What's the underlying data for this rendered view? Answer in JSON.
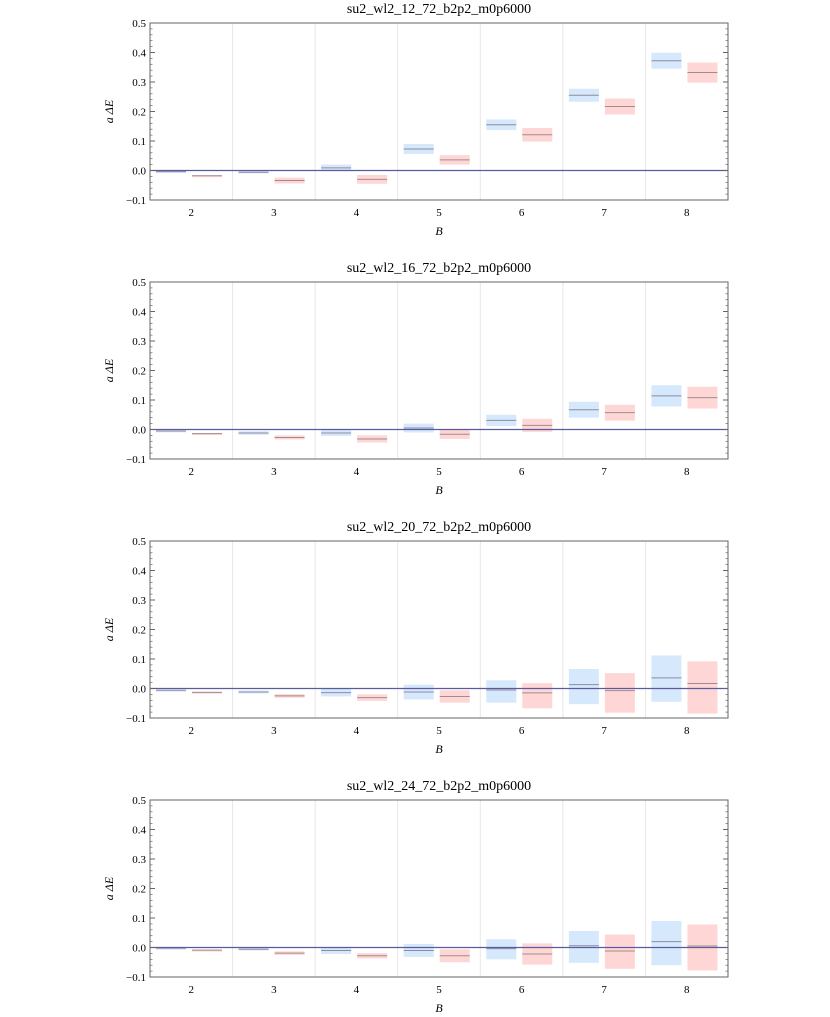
{
  "chart_data": [
    {
      "type": "interval",
      "title": "su2_wl2_12_72_b2p2_m0p6000",
      "xlabel": "B",
      "ylabel": "a ΔE",
      "ylim": [
        -0.1,
        0.5
      ],
      "yticks": [
        "0.5",
        "0.4",
        "0.3",
        "0.2",
        "0.1",
        "0.0",
        "−0.1"
      ],
      "categories": [
        "2",
        "3",
        "4",
        "5",
        "6",
        "7",
        "8"
      ],
      "series": [
        {
          "name": "blue",
          "color": "#d6e8fb",
          "line_color": "#8c8ca0",
          "center": [
            -0.004,
            -0.006,
            0.009,
            0.073,
            0.155,
            0.255,
            0.372
          ],
          "low": [
            -0.006,
            -0.01,
            -0.002,
            0.056,
            0.137,
            0.233,
            0.345
          ],
          "high": [
            -0.002,
            -0.002,
            0.02,
            0.09,
            0.173,
            0.277,
            0.399
          ]
        },
        {
          "name": "red",
          "color": "#ffd6d6",
          "line_color": "#a08c8c",
          "center": [
            -0.018,
            -0.034,
            -0.03,
            0.036,
            0.121,
            0.217,
            0.332
          ],
          "low": [
            -0.02,
            -0.044,
            -0.045,
            0.02,
            0.098,
            0.19,
            0.298
          ],
          "high": [
            -0.016,
            -0.024,
            -0.015,
            0.052,
            0.144,
            0.244,
            0.366
          ]
        }
      ]
    },
    {
      "type": "interval",
      "title": "su2_wl2_16_72_b2p2_m0p6000",
      "xlabel": "B",
      "ylabel": "a ΔE",
      "ylim": [
        -0.1,
        0.5
      ],
      "yticks": [
        "0.5",
        "0.4",
        "0.3",
        "0.2",
        "0.1",
        "0.0",
        "−0.1"
      ],
      "categories": [
        "2",
        "3",
        "4",
        "5",
        "6",
        "7",
        "8"
      ],
      "series": [
        {
          "name": "blue",
          "color": "#d6e8fb",
          "line_color": "#8c8ca0",
          "center": [
            -0.005,
            -0.012,
            -0.012,
            0.005,
            0.031,
            0.067,
            0.114
          ],
          "low": [
            -0.007,
            -0.018,
            -0.022,
            -0.01,
            0.012,
            0.04,
            0.078
          ],
          "high": [
            -0.003,
            -0.006,
            -0.002,
            0.02,
            0.05,
            0.094,
            0.15
          ]
        },
        {
          "name": "red",
          "color": "#ffd6d6",
          "line_color": "#a08c8c",
          "center": [
            -0.014,
            -0.027,
            -0.032,
            -0.016,
            0.014,
            0.057,
            0.108
          ],
          "low": [
            -0.016,
            -0.034,
            -0.044,
            -0.032,
            -0.008,
            0.03,
            0.071
          ],
          "high": [
            -0.012,
            -0.02,
            -0.02,
            0.0,
            0.036,
            0.084,
            0.145
          ]
        }
      ]
    },
    {
      "type": "interval",
      "title": "su2_wl2_20_72_b2p2_m0p6000",
      "xlabel": "B",
      "ylabel": "a ΔE",
      "ylim": [
        -0.1,
        0.5
      ],
      "yticks": [
        "0.5",
        "0.4",
        "0.3",
        "0.2",
        "0.1",
        "0.0",
        "−0.1"
      ],
      "categories": [
        "2",
        "3",
        "4",
        "5",
        "6",
        "7",
        "8"
      ],
      "series": [
        {
          "name": "blue",
          "color": "#d6e8fb",
          "line_color": "#8c8ca0",
          "center": [
            -0.006,
            -0.012,
            -0.014,
            -0.012,
            -0.005,
            0.013,
            0.036
          ],
          "low": [
            -0.008,
            -0.017,
            -0.027,
            -0.037,
            -0.048,
            -0.053,
            -0.045
          ],
          "high": [
            -0.004,
            -0.007,
            -0.001,
            0.013,
            0.028,
            0.066,
            0.112
          ]
        },
        {
          "name": "red",
          "color": "#ffd6d6",
          "line_color": "#a08c8c",
          "center": [
            -0.013,
            -0.025,
            -0.031,
            -0.027,
            -0.015,
            -0.007,
            0.017
          ],
          "low": [
            -0.015,
            -0.031,
            -0.042,
            -0.048,
            -0.067,
            -0.082,
            -0.085
          ],
          "high": [
            -0.011,
            -0.019,
            -0.02,
            -0.006,
            0.018,
            0.052,
            0.092
          ]
        }
      ]
    },
    {
      "type": "interval",
      "title": "su2_wl2_24_72_b2p2_m0p6000",
      "xlabel": "B",
      "ylabel": "a ΔE",
      "ylim": [
        -0.1,
        0.5
      ],
      "yticks": [
        "0.5",
        "0.4",
        "0.3",
        "0.2",
        "0.1",
        "0.0",
        "−0.1"
      ],
      "categories": [
        "2",
        "3",
        "4",
        "5",
        "6",
        "7",
        "8"
      ],
      "series": [
        {
          "name": "blue",
          "color": "#d6e8fb",
          "line_color": "#8c8ca0",
          "center": [
            -0.002,
            -0.006,
            -0.01,
            -0.01,
            -0.004,
            0.006,
            0.02
          ],
          "low": [
            -0.003,
            -0.01,
            -0.022,
            -0.032,
            -0.04,
            -0.052,
            -0.06
          ],
          "high": [
            -0.001,
            -0.002,
            0.002,
            0.012,
            0.028,
            0.056,
            0.09
          ]
        },
        {
          "name": "red",
          "color": "#ffd6d6",
          "line_color": "#a08c8c",
          "center": [
            -0.009,
            -0.019,
            -0.028,
            -0.028,
            -0.022,
            -0.012,
            0.005
          ],
          "low": [
            -0.011,
            -0.025,
            -0.037,
            -0.05,
            -0.058,
            -0.072,
            -0.078
          ],
          "high": [
            -0.007,
            -0.013,
            -0.019,
            -0.006,
            0.014,
            0.044,
            0.078
          ]
        }
      ]
    }
  ],
  "colors": {
    "zero_line": "#5a5aa0",
    "frame": "#666666",
    "divider": "#e6e6e6"
  }
}
